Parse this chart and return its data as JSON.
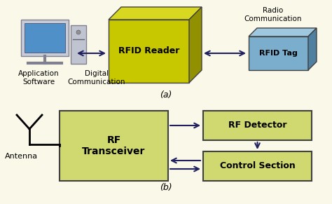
{
  "bg_color": "#faf8e8",
  "rfid_reader_color": "#c8c800",
  "rfid_reader_top_color": "#d8d820",
  "rfid_reader_right_color": "#909000",
  "rfid_tag_color": "#7aaecc",
  "rfid_tag_top_color": "#9dc8e0",
  "rfid_tag_right_color": "#5080a0",
  "rf_block_color": "#d0d870",
  "label_a": "(a)",
  "label_b": "(b)",
  "rfid_reader_text": "RFID Reader",
  "rfid_tag_text": "RFID Tag",
  "radio_comm_text": "Radio\nCommunication",
  "digital_comm_text": "Digital\nCommunication",
  "app_software_text": "Application\nSoftware",
  "rf_transceiver_text": "RF\nTransceiver",
  "rf_detector_text": "RF Detector",
  "control_section_text": "Control Section",
  "antenna_text": "Antenna",
  "arrow_color": "#202060",
  "text_color": "#000000",
  "border_color": "#404040"
}
